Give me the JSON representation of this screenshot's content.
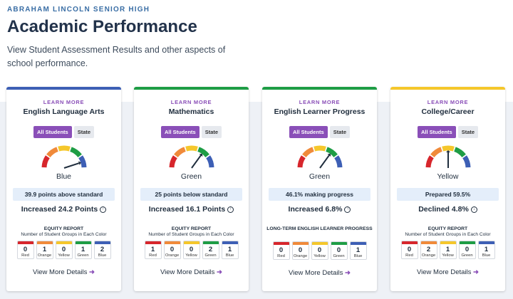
{
  "header": {
    "school": "ABRAHAM LINCOLN SENIOR HIGH",
    "title": "Academic Performance",
    "subtitle": "View Student Assessment Results and other aspects of school performance."
  },
  "colors": {
    "red": "#d7262c",
    "orange": "#f08a3a",
    "yellow": "#f5c72b",
    "green": "#1e9d45",
    "blue": "#3d5fb5",
    "purple": "#8a4fb8"
  },
  "cards": [
    {
      "learn": "LEARN MORE",
      "name": "English Language Arts",
      "toggle_on": "All Students",
      "toggle_off": "State",
      "color": "Blue",
      "accent": "#3d5fb5",
      "needle": "blue",
      "metric": "39.9 points above standard",
      "change": "Increased 24.2 Points",
      "change_dir": "up",
      "eq_title": "EQUITY REPORT",
      "eq_sub": "Number of Student Groups in Each Color",
      "groups": [
        {
          "label": "Red",
          "value": "0"
        },
        {
          "label": "Orange",
          "value": "1"
        },
        {
          "label": "Yellow",
          "value": "0"
        },
        {
          "label": "Green",
          "value": "1"
        },
        {
          "label": "Blue",
          "value": "2"
        }
      ],
      "more": "View More Details"
    },
    {
      "learn": "LEARN MORE",
      "name": "Mathematics",
      "toggle_on": "All Students",
      "toggle_off": "State",
      "color": "Green",
      "accent": "#1e9d45",
      "needle": "green",
      "metric": "25 points below standard",
      "change": "Increased 16.1 Points",
      "change_dir": "up",
      "eq_title": "EQUITY REPORT",
      "eq_sub": "Number of Student Groups in Each Color",
      "groups": [
        {
          "label": "Red",
          "value": "1"
        },
        {
          "label": "Orange",
          "value": "0"
        },
        {
          "label": "Yellow",
          "value": "0"
        },
        {
          "label": "Green",
          "value": "2"
        },
        {
          "label": "Blue",
          "value": "1"
        }
      ],
      "more": "View More Details"
    },
    {
      "learn": "LEARN MORE",
      "name": "English Learner Progress",
      "toggle_on": "All Students",
      "toggle_off": "State",
      "color": "Green",
      "accent": "#1e9d45",
      "needle": "green",
      "metric": "46.1% making progress",
      "change": "Increased 6.8%",
      "change_dir": "up",
      "eq_title": "LONG-TERM ENGLISH LEARNER PROGRESS",
      "eq_sub": "",
      "groups": [
        {
          "label": "Red",
          "value": "0"
        },
        {
          "label": "Orange",
          "value": "0"
        },
        {
          "label": "Yellow",
          "value": "0"
        },
        {
          "label": "Green",
          "value": "0"
        },
        {
          "label": "Blue",
          "value": "1"
        }
      ],
      "more": "View More Details"
    },
    {
      "learn": "LEARN MORE",
      "name": "College/Career",
      "toggle_on": "All Students",
      "toggle_off": "State",
      "color": "Yellow",
      "accent": "#f5c72b",
      "needle": "yellow",
      "metric": "Prepared 59.5%",
      "change": "Declined 4.8%",
      "change_dir": "down",
      "eq_title": "EQUITY REPORT",
      "eq_sub": "Number of Student Groups in Each Color",
      "groups": [
        {
          "label": "Red",
          "value": "0"
        },
        {
          "label": "Orange",
          "value": "2"
        },
        {
          "label": "Yellow",
          "value": "1"
        },
        {
          "label": "Green",
          "value": "0"
        },
        {
          "label": "Blue",
          "value": "1"
        }
      ],
      "more": "View More Details"
    }
  ]
}
